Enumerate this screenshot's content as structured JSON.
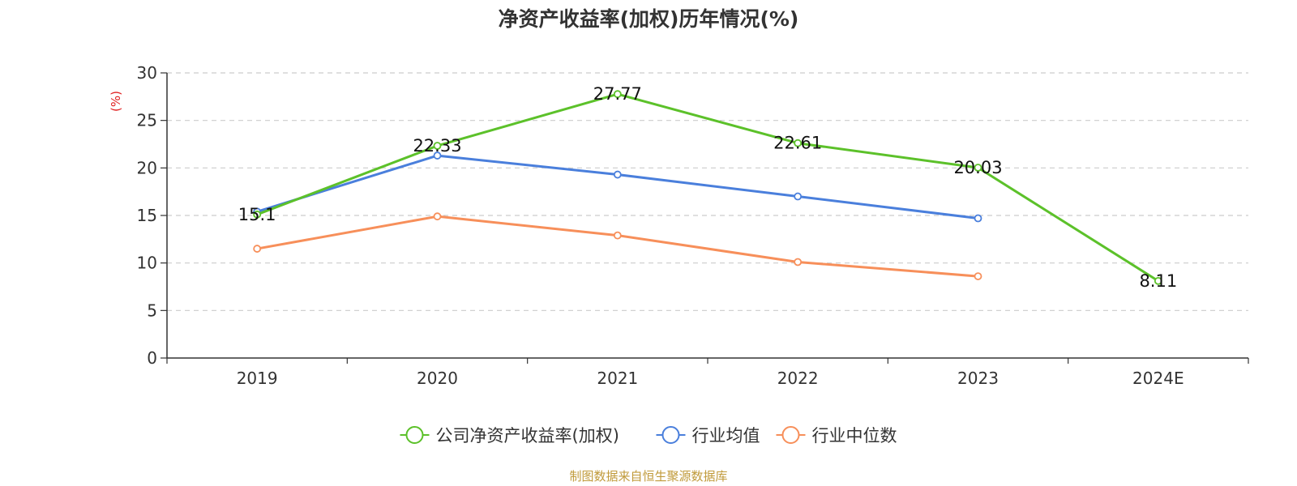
{
  "chart_data": {
    "type": "line",
    "title": "净资产收益率(加权)历年情况(%)",
    "ylabel": "(%)",
    "xlabel": "",
    "categories": [
      "2019",
      "2020",
      "2021",
      "2022",
      "2023",
      "2024E"
    ],
    "ylim": [
      0,
      30
    ],
    "yticks": [
      0,
      5,
      10,
      15,
      20,
      25,
      30
    ],
    "grid": true,
    "grid_style": "dashed",
    "legend_position": "bottom",
    "series": [
      {
        "name": "公司净资产收益率(加权)",
        "color": "#5cc12a",
        "values": [
          15.1,
          22.33,
          27.77,
          22.61,
          20.03,
          8.11
        ],
        "labels": [
          "15.1",
          "22.33",
          "27.77",
          "22.61",
          "20.03",
          "8.11"
        ]
      },
      {
        "name": "行业均值",
        "color": "#4a7fdc",
        "values": [
          15.4,
          21.3,
          19.3,
          17.0,
          14.7,
          null
        ]
      },
      {
        "name": "行业中位数",
        "color": "#f78f5a",
        "values": [
          11.5,
          14.9,
          12.9,
          10.1,
          8.6,
          null
        ]
      }
    ]
  },
  "footer": {
    "source": "制图数据来自恒生聚源数据库"
  }
}
